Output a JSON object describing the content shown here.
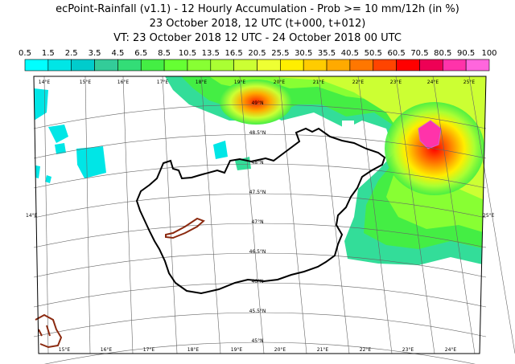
{
  "header": {
    "title": "ecPoint-Rainfall (v1.1)   - 12 Hourly Accumulation - Prob >= 10 mm/12h (in %)",
    "run": "23 October 2018, 12 UTC (t+000, t+012)",
    "valid": "VT: 23 October 2018 12 UTC - 24 October 2018 00 UTC"
  },
  "colorbar": {
    "labels": [
      "0.5",
      "1.5",
      "2.5",
      "3.5",
      "4.5",
      "6.5",
      "8.5",
      "10.5",
      "13.5",
      "16.5",
      "20.5",
      "25.5",
      "30.5",
      "35.5",
      "40.5",
      "50.5",
      "60.5",
      "70.5",
      "80.5",
      "90.5",
      "100"
    ],
    "colors": [
      "#00ffff",
      "#00e6e6",
      "#00cccc",
      "#33cc99",
      "#33dd77",
      "#44ee44",
      "#66ff33",
      "#88ff33",
      "#aaff33",
      "#ccff33",
      "#eeff33",
      "#ffee00",
      "#ffcc00",
      "#ffaa00",
      "#ff7700",
      "#ff4400",
      "#ff0000",
      "#ee0055",
      "#ff33aa",
      "#ff66dd"
    ]
  },
  "map": {
    "lon_labels_top": [
      "14°E",
      "15°E",
      "16°E",
      "17°E",
      "18°E",
      "19°E",
      "20°E",
      "21°E",
      "22°E",
      "23°E",
      "24°E",
      "25°E"
    ],
    "lon_labels_bottom": [
      "15°E",
      "16°E",
      "17°E",
      "18°E",
      "19°E",
      "20°E",
      "21°E",
      "22°E",
      "23°E",
      "24°E"
    ],
    "lat_labels": [
      "49°N",
      "48.5°N",
      "48°N",
      "47.5°N",
      "47°N",
      "46.5°N",
      "46°N",
      "45.5°N",
      "45°N"
    ],
    "side_label_left": "14°E",
    "side_label_right": "25°E"
  }
}
